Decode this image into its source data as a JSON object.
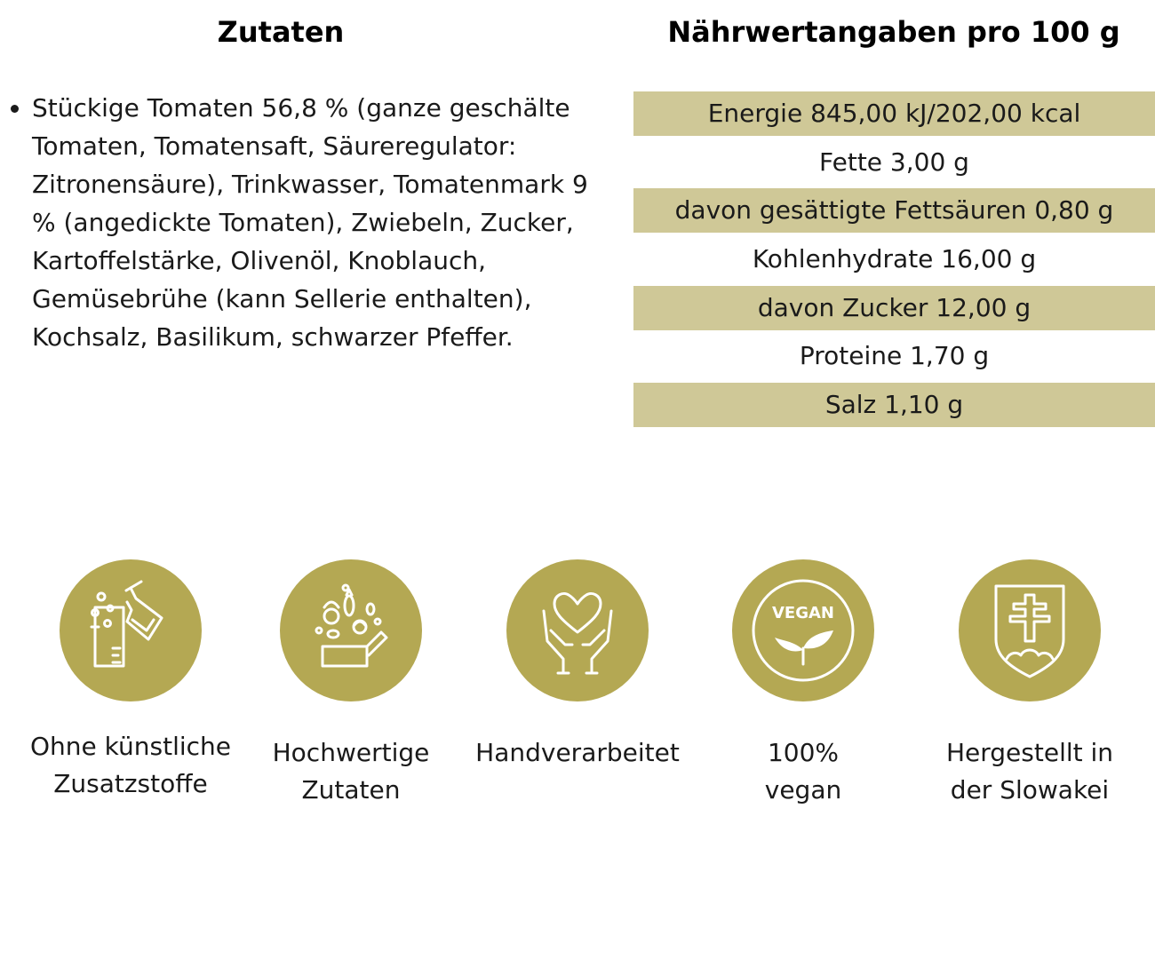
{
  "ingredients": {
    "heading": "Zutaten",
    "text": "Stückige Tomaten 56,8 % (ganze geschälte Tomaten, Tomatensaft, Säureregulator: Zitronensäure), Trinkwasser, Tomatenmark 9 % (angedickte Tomaten), Zwiebeln, Zucker, Kartoffelstärke, Olivenöl, Knoblauch, Gemüsebrühe (kann Sellerie enthalten), Kochsalz, Basilikum, schwarzer Pfeffer."
  },
  "nutrition": {
    "heading": "Nährwertangaben pro 100 g",
    "rows": [
      "Energie 845,00 kJ/202,00 kcal",
      "Fette 3,00 g",
      "davon gesättigte Fettsäuren 0,80 g",
      "Kohlenhydrate 16,00 g",
      "davon Zucker 12,00 g",
      "Proteine 1,70 g",
      "Salz 1,10 g"
    ]
  },
  "colors": {
    "row_shade": "#cfc897",
    "badge": "#b4a853"
  },
  "badges": [
    {
      "icon": "lab-flask-icon",
      "caption": "Ohne künstliche\nZusatzstoffe"
    },
    {
      "icon": "vegetables-box-icon",
      "caption": "Hochwertige\nZutaten"
    },
    {
      "icon": "heart-hands-icon",
      "caption": "Handverarbeitet"
    },
    {
      "icon": "vegan-leaf-icon",
      "caption": "100%\nvegan",
      "icon_text": "VEGAN"
    },
    {
      "icon": "slovak-emblem-icon",
      "caption": "Hergestellt in\nder Slowakei"
    }
  ]
}
